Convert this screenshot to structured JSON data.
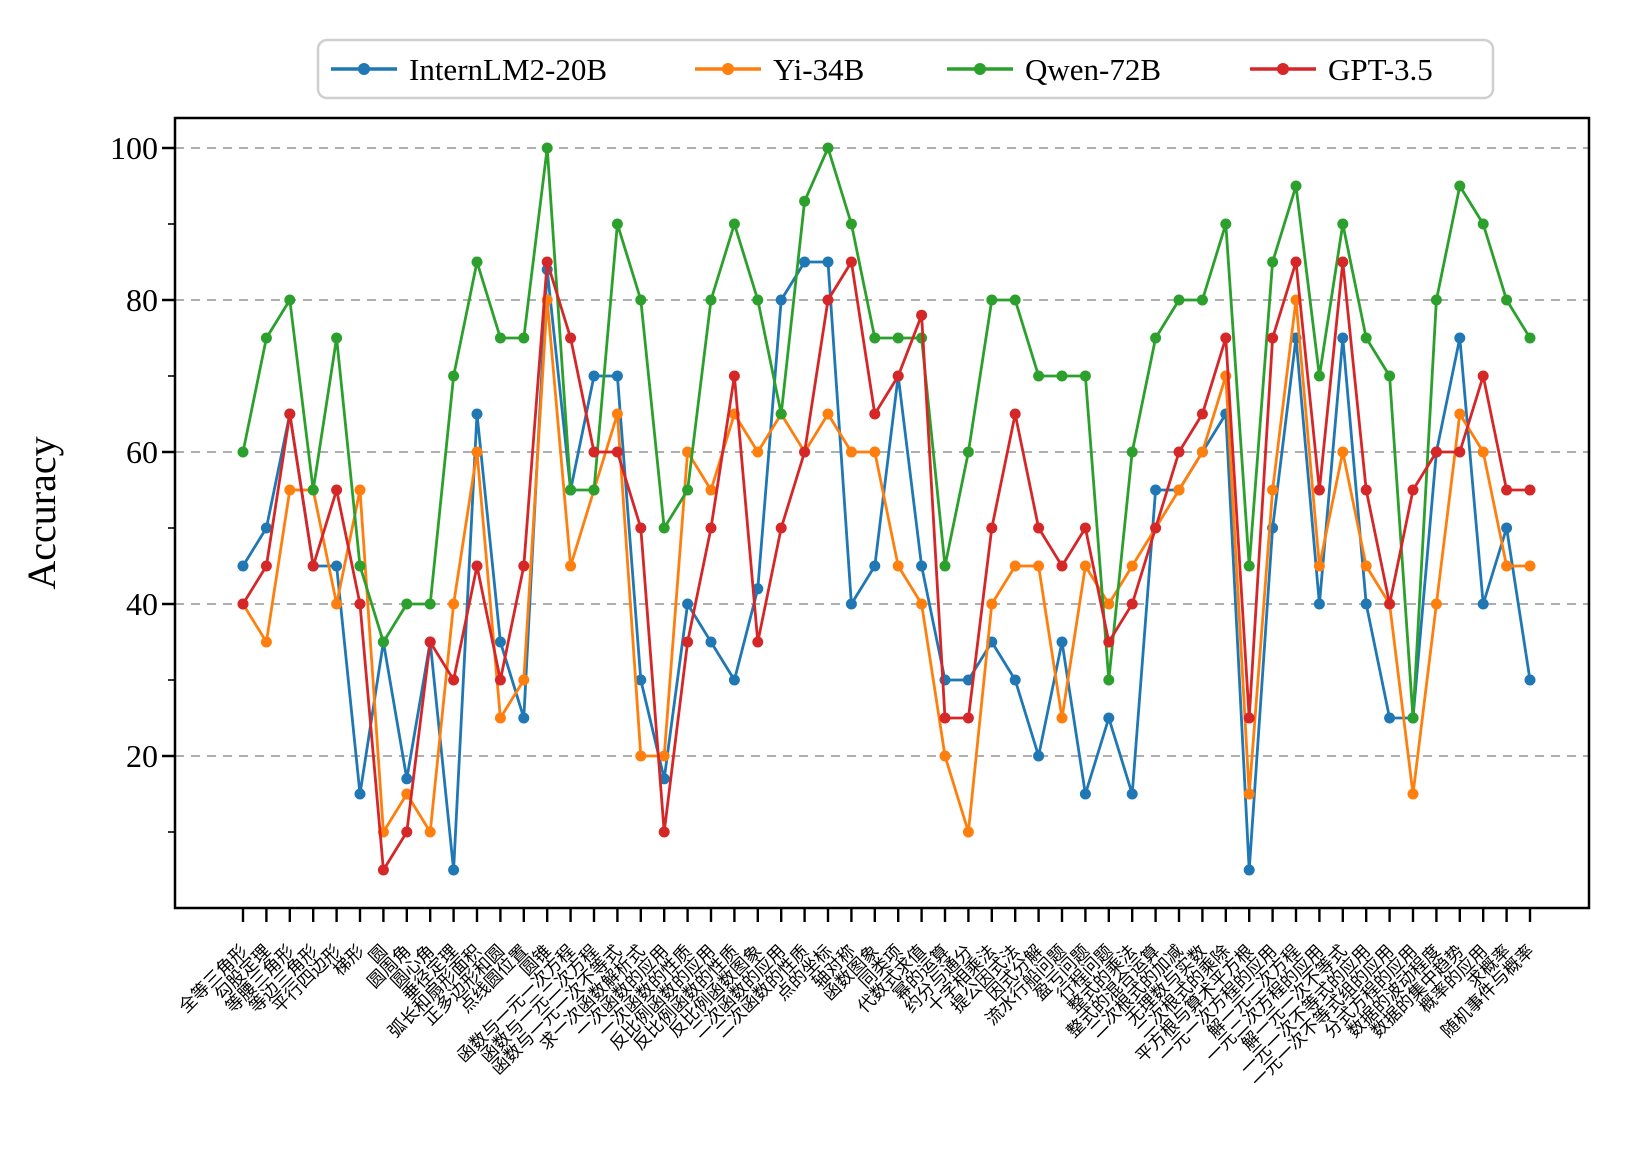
{
  "chart_data": {
    "type": "line",
    "title": "",
    "xlabel": "",
    "ylabel": "Accuracy",
    "ylim": [
      0,
      105
    ],
    "yticks": [
      20,
      40,
      60,
      80,
      100
    ],
    "grid": "horizontal-dashed",
    "legend_position": "top-outside",
    "categories": [
      "全等三角形",
      "勾股定理",
      "等腰三角形",
      "等边三角形",
      "平行四边形",
      "梯形",
      "圆",
      "圆周角",
      "圆心角",
      "垂径定理",
      "弧长和扇形面积",
      "正多边形和圆",
      "点线圆位置",
      "圆锥",
      "函数与一元一次方程",
      "函数与一元二次方程",
      "函数与一元一次不等式",
      "求一次函数解析式",
      "一次函数的应用",
      "一次函数的性质",
      "反比例函数的应用",
      "反比例函数的性质",
      "反比例函数图象",
      "二次函数的应用",
      "二次函数的性质",
      "点的坐标",
      "轴对称",
      "函数图象",
      "同类项",
      "代数式求值",
      "幂的运算",
      "约分与通分",
      "十字相乘法",
      "提公因式法",
      "因式分解",
      "流水行船问题",
      "盈亏问题",
      "行程问题",
      "整式的乘法",
      "整式的混合运算",
      "二次根式的加减",
      "无理数与实数",
      "二次根式的乘除",
      "平方根与算术平方根",
      "一元一次方程的应用",
      "解一元二次方程",
      "一元二次方程的应用",
      "解一元一次不等式",
      "一元一次不等式的应用",
      "一元一次不等式组的应用",
      "分式方程的应用",
      "数据的波动程度",
      "数据的集中趋势",
      "概率的应用",
      "求概率",
      "随机事件与概率"
    ],
    "series": [
      {
        "name": "InternLM2-20B",
        "color": "#1f77b4",
        "values": [
          45,
          50,
          65,
          45,
          45,
          15,
          35,
          17,
          35,
          5,
          65,
          35,
          25,
          84,
          55,
          70,
          70,
          30,
          17,
          40,
          35,
          30,
          42,
          80,
          85,
          85,
          40,
          45,
          70,
          45,
          30,
          30,
          35,
          30,
          20,
          35,
          15,
          25,
          15,
          55,
          55,
          60,
          65,
          5,
          50,
          75,
          40,
          75,
          40,
          25,
          25,
          60,
          75,
          40,
          50,
          30
        ]
      },
      {
        "name": "Yi-34B",
        "color": "#ff7f0e",
        "values": [
          40,
          35,
          55,
          55,
          40,
          55,
          10,
          15,
          10,
          40,
          60,
          25,
          30,
          80,
          45,
          55,
          65,
          20,
          20,
          60,
          55,
          65,
          60,
          65,
          60,
          65,
          60,
          60,
          45,
          40,
          20,
          10,
          40,
          45,
          45,
          25,
          45,
          40,
          45,
          50,
          55,
          60,
          70,
          15,
          55,
          80,
          45,
          60,
          45,
          40,
          15,
          40,
          65,
          60,
          45,
          45
        ]
      },
      {
        "name": "Qwen-72B",
        "color": "#2ca02c",
        "values": [
          60,
          75,
          80,
          55,
          75,
          45,
          35,
          40,
          40,
          70,
          85,
          75,
          75,
          100,
          55,
          55,
          90,
          80,
          50,
          55,
          80,
          90,
          80,
          65,
          93,
          100,
          90,
          75,
          75,
          75,
          45,
          60,
          80,
          80,
          70,
          70,
          70,
          30,
          60,
          75,
          80,
          80,
          90,
          45,
          85,
          95,
          70,
          90,
          75,
          70,
          25,
          80,
          95,
          90,
          80,
          75
        ]
      },
      {
        "name": "GPT-3.5",
        "color": "#d62728",
        "values": [
          40,
          45,
          65,
          45,
          55,
          40,
          5,
          10,
          35,
          30,
          45,
          30,
          45,
          85,
          75,
          60,
          60,
          50,
          10,
          35,
          50,
          70,
          35,
          50,
          60,
          80,
          85,
          65,
          70,
          78,
          25,
          25,
          50,
          65,
          50,
          45,
          50,
          35,
          40,
          50,
          60,
          65,
          75,
          25,
          75,
          85,
          55,
          85,
          55,
          40,
          55,
          60,
          60,
          70,
          55,
          55
        ]
      }
    ]
  },
  "style": {
    "grid_color": "#a3a3a3",
    "axis_color": "#000000",
    "legend_border_color": "#cfcfcf",
    "background": "#ffffff"
  }
}
